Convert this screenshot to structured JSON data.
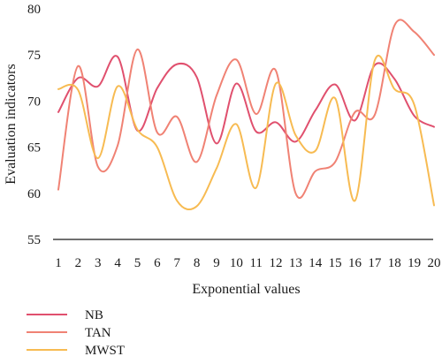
{
  "chart_data": {
    "type": "line",
    "xlabel": "Exponential values",
    "ylabel": "Evaluation indicators",
    "ylim": [
      55,
      80
    ],
    "yticks": [
      55,
      60,
      65,
      70,
      75,
      80
    ],
    "x": [
      1,
      2,
      3,
      4,
      5,
      6,
      7,
      8,
      9,
      10,
      11,
      12,
      13,
      14,
      15,
      16,
      17,
      18,
      19,
      20
    ],
    "legend_position": "bottom-left",
    "grid": false,
    "series": [
      {
        "name": "NB",
        "color": "#e0506e",
        "values": [
          68.8,
          72.5,
          71.6,
          74.8,
          66.8,
          71.4,
          74.0,
          72.6,
          65.4,
          71.9,
          66.7,
          67.7,
          65.6,
          69.0,
          71.8,
          67.9,
          73.9,
          72.4,
          68.4,
          67.2
        ]
      },
      {
        "name": "TAN",
        "color": "#f08274",
        "values": [
          60.4,
          73.8,
          62.9,
          65.2,
          75.6,
          66.6,
          68.3,
          63.4,
          70.6,
          74.5,
          68.6,
          73.3,
          60.0,
          62.4,
          63.4,
          68.8,
          68.5,
          78.2,
          77.5,
          75.0
        ]
      },
      {
        "name": "MWST",
        "color": "#f7bb52",
        "values": [
          71.3,
          71.2,
          63.8,
          71.6,
          66.9,
          65.0,
          59.2,
          58.6,
          62.7,
          67.5,
          60.6,
          71.9,
          66.3,
          64.6,
          70.3,
          59.2,
          74.4,
          71.3,
          69.6,
          58.7
        ]
      }
    ]
  }
}
